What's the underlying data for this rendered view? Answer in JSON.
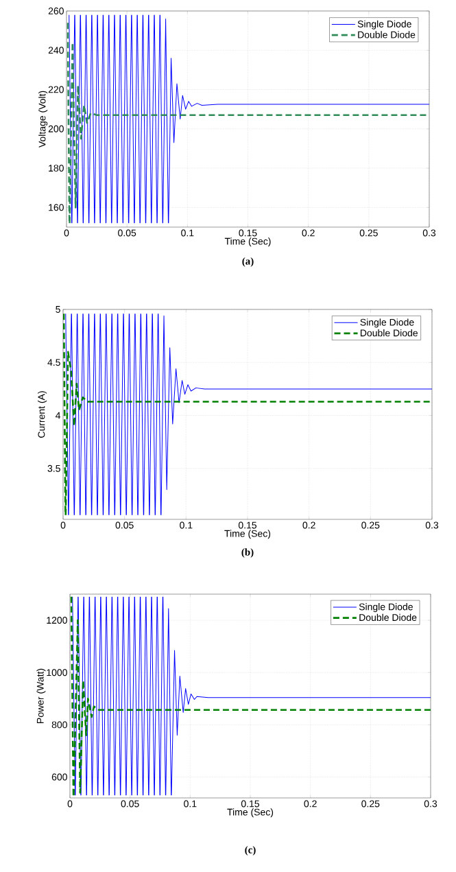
{
  "chart_data": [
    {
      "type": "line",
      "xlabel": "Time (Sec)",
      "ylabel": "Voltage (Volt)",
      "annotations": [
        "(a)"
      ],
      "xlim": [
        0,
        0.3
      ],
      "ylim": [
        150,
        260
      ],
      "xticks": [
        0,
        0.05,
        0.1,
        0.15,
        0.2,
        0.25,
        0.3
      ],
      "yticks": [
        160,
        180,
        200,
        220,
        240,
        260
      ],
      "grid": true,
      "legend": "top right",
      "series": [
        {
          "name": "Single Diode",
          "color": "#0000ff",
          "line_style": "solid",
          "x": [
            0.0019,
            0.002,
            0.0021,
            0.0043,
            0.0044,
            0.0045,
            0.0067,
            0.0068,
            0.0069,
            0.009,
            0.0091,
            0.0092,
            0.0114,
            0.0115,
            0.0116,
            0.0137,
            0.0138,
            0.0139,
            0.0161,
            0.0162,
            0.0163,
            0.0184,
            0.0185,
            0.0186,
            0.0208,
            0.0209,
            0.021,
            0.0231,
            0.0232,
            0.0233,
            0.0255,
            0.0256,
            0.0257,
            0.0278,
            0.0279,
            0.028,
            0.0302,
            0.0303,
            0.0304,
            0.0325,
            0.0326,
            0.0327,
            0.0349,
            0.035,
            0.0351,
            0.0372,
            0.0373,
            0.0374,
            0.0396,
            0.0397,
            0.0398,
            0.0419,
            0.042,
            0.0421,
            0.0443,
            0.0444,
            0.0445,
            0.0466,
            0.0467,
            0.0468,
            0.049,
            0.0491,
            0.0492,
            0.0513,
            0.0514,
            0.0515,
            0.0537,
            0.0538,
            0.0539,
            0.056,
            0.0561,
            0.0562,
            0.0584,
            0.0585,
            0.0586,
            0.0607,
            0.0608,
            0.0609,
            0.0631,
            0.0632,
            0.0633,
            0.0654,
            0.0655,
            0.0656,
            0.0678,
            0.0679,
            0.068,
            0.0701,
            0.0702,
            0.0703,
            0.0725,
            0.0726,
            0.0727,
            0.0748,
            0.0749,
            0.075,
            0.0772,
            0.0773,
            0.0774,
            0.0795,
            0.0796,
            0.0797,
            0.082,
            0.0842,
            0.0843,
            0.0844,
            0.0865,
            0.0888,
            0.0913,
            0.094,
            0.096,
            0.0985,
            0.101,
            0.1035,
            0.108,
            0.112,
            0.125,
            0.3
          ],
          "values": [
            258,
            null,
            258,
            152,
            null,
            152,
            258,
            null,
            258,
            152,
            null,
            152,
            258,
            null,
            258,
            152,
            null,
            152,
            258,
            null,
            258,
            152,
            null,
            152,
            258,
            null,
            258,
            152,
            null,
            152,
            258,
            null,
            258,
            152,
            null,
            152,
            258,
            null,
            258,
            152,
            null,
            152,
            258,
            null,
            258,
            152,
            null,
            152,
            258,
            null,
            258,
            152,
            null,
            152,
            258,
            null,
            258,
            152,
            null,
            152,
            258,
            null,
            258,
            152,
            null,
            152,
            258,
            null,
            258,
            152,
            null,
            152,
            258,
            null,
            258,
            152,
            null,
            152,
            258,
            null,
            258,
            152,
            null,
            152,
            258,
            null,
            258,
            152,
            null,
            152,
            258,
            null,
            258,
            152,
            null,
            152,
            258,
            null,
            258,
            152,
            null,
            152,
            256,
            152,
            null,
            152,
            236,
            193,
            223,
            205,
            217,
            210,
            214,
            211.5,
            213,
            212,
            212.5,
            212.5
          ]
        },
        {
          "name": "Double Diode",
          "color": "#2e8b57",
          "line_style": "dashed",
          "x": [
            0.001,
            0.0024,
            0.0025,
            0.0026,
            0.005,
            0.0075,
            0.0095,
            0.012,
            0.0145,
            0.017,
            0.02,
            0.025,
            0.3
          ],
          "values": [
            254,
            152,
            null,
            152,
            244,
            160,
            222,
            195,
            212,
            203,
            208,
            207,
            207
          ]
        }
      ]
    },
    {
      "type": "line",
      "xlabel": "Time (Sec)",
      "ylabel": "Current (A)",
      "annotations": [
        "(b)"
      ],
      "xlim": [
        0,
        0.3
      ],
      "ylim": [
        3.02,
        5
      ],
      "xticks": [
        0,
        0.05,
        0.1,
        0.15,
        0.2,
        0.25,
        0.3
      ],
      "yticks": [
        3.5,
        4,
        4.5,
        5
      ],
      "grid": true,
      "legend": "top right",
      "series": [
        {
          "name": "Single Diode",
          "color": "#0000ff",
          "line_style": "solid",
          "x": [
            0.0019,
            0.002,
            0.0021,
            0.0043,
            0.0044,
            0.0045,
            0.0067,
            0.0068,
            0.0069,
            0.009,
            0.0091,
            0.0092,
            0.0114,
            0.0115,
            0.0116,
            0.0137,
            0.0138,
            0.0139,
            0.0161,
            0.0162,
            0.0163,
            0.0184,
            0.0185,
            0.0186,
            0.0208,
            0.0209,
            0.021,
            0.0231,
            0.0232,
            0.0233,
            0.0255,
            0.0256,
            0.0257,
            0.0278,
            0.0279,
            0.028,
            0.0302,
            0.0303,
            0.0304,
            0.0325,
            0.0326,
            0.0327,
            0.0349,
            0.035,
            0.0351,
            0.0372,
            0.0373,
            0.0374,
            0.0396,
            0.0397,
            0.0398,
            0.0419,
            0.042,
            0.0421,
            0.0443,
            0.0444,
            0.0445,
            0.0466,
            0.0467,
            0.0468,
            0.049,
            0.0491,
            0.0492,
            0.0513,
            0.0514,
            0.0515,
            0.0537,
            0.0538,
            0.0539,
            0.056,
            0.0561,
            0.0562,
            0.0584,
            0.0585,
            0.0586,
            0.0607,
            0.0608,
            0.0609,
            0.0631,
            0.0632,
            0.0633,
            0.0654,
            0.0655,
            0.0656,
            0.0678,
            0.0679,
            0.068,
            0.0701,
            0.0702,
            0.0703,
            0.0725,
            0.0726,
            0.0727,
            0.0748,
            0.0749,
            0.075,
            0.0772,
            0.0773,
            0.0774,
            0.0795,
            0.0796,
            0.0797,
            0.082,
            0.0843,
            0.0868,
            0.0891,
            0.0918,
            0.0943,
            0.0968,
            0.099,
            0.1015,
            0.104,
            0.108,
            0.115,
            0.3
          ],
          "values": [
            4.96,
            null,
            4.96,
            3.06,
            null,
            3.06,
            4.96,
            null,
            4.96,
            3.06,
            null,
            3.06,
            4.96,
            null,
            4.96,
            3.06,
            null,
            3.06,
            4.96,
            null,
            4.96,
            3.06,
            null,
            3.06,
            4.96,
            null,
            4.96,
            3.06,
            null,
            3.06,
            4.96,
            null,
            4.96,
            3.06,
            null,
            3.06,
            4.96,
            null,
            4.96,
            3.06,
            null,
            3.06,
            4.96,
            null,
            4.96,
            3.06,
            null,
            3.06,
            4.96,
            null,
            4.96,
            3.06,
            null,
            3.06,
            4.96,
            null,
            4.96,
            3.06,
            null,
            3.06,
            4.96,
            null,
            4.96,
            3.06,
            null,
            3.06,
            4.96,
            null,
            4.96,
            3.06,
            null,
            3.06,
            4.96,
            null,
            4.96,
            3.06,
            null,
            3.06,
            4.96,
            null,
            4.96,
            3.06,
            null,
            3.06,
            4.96,
            null,
            4.96,
            3.06,
            null,
            3.06,
            4.96,
            null,
            4.96,
            3.06,
            null,
            3.06,
            4.96,
            null,
            4.96,
            3.06,
            null,
            3.06,
            4.94,
            3.3,
            4.64,
            3.92,
            4.44,
            4.12,
            4.33,
            4.2,
            4.29,
            4.23,
            4.26,
            4.25,
            4.25
          ]
        },
        {
          "name": "Double Diode",
          "color": "#008000",
          "line_style": "dashed",
          "x": [
            0.0004,
            0.0005,
            0.0006,
            0.0019,
            0.002,
            0.0021,
            0.004,
            0.0065,
            0.009,
            0.011,
            0.013,
            0.016,
            0.02,
            0.3
          ],
          "values": [
            4.96,
            null,
            4.96,
            3.06,
            null,
            3.06,
            4.6,
            4.42,
            3.9,
            4.3,
            4.05,
            4.17,
            4.13,
            4.13
          ]
        }
      ]
    },
    {
      "type": "line",
      "xlabel": "Time (Sec)",
      "ylabel": "Power (Watt)",
      "annotations": [
        "(c)"
      ],
      "xlim": [
        0,
        0.3
      ],
      "ylim": [
        520,
        1300
      ],
      "xticks": [
        0,
        0.05,
        0.1,
        0.15,
        0.2,
        0.25,
        0.3
      ],
      "yticks": [
        600,
        800,
        1000,
        1200
      ],
      "grid": true,
      "legend": "top right",
      "series": [
        {
          "name": "Single Diode",
          "color": "#0000ff",
          "line_style": "solid",
          "x": [
            0.0019,
            0.002,
            0.0021,
            0.0043,
            0.0044,
            0.0045,
            0.0067,
            0.0068,
            0.0069,
            0.009,
            0.0091,
            0.0092,
            0.0114,
            0.0115,
            0.0116,
            0.0137,
            0.0138,
            0.0139,
            0.0161,
            0.0162,
            0.0163,
            0.0184,
            0.0185,
            0.0186,
            0.0208,
            0.0209,
            0.021,
            0.0231,
            0.0232,
            0.0233,
            0.0255,
            0.0256,
            0.0257,
            0.0278,
            0.0279,
            0.028,
            0.0302,
            0.0303,
            0.0304,
            0.0325,
            0.0326,
            0.0327,
            0.0349,
            0.035,
            0.0351,
            0.0372,
            0.0373,
            0.0374,
            0.0396,
            0.0397,
            0.0398,
            0.0419,
            0.042,
            0.0421,
            0.0443,
            0.0444,
            0.0445,
            0.0466,
            0.0467,
            0.0468,
            0.049,
            0.0491,
            0.0492,
            0.0513,
            0.0514,
            0.0515,
            0.0537,
            0.0538,
            0.0539,
            0.056,
            0.0561,
            0.0562,
            0.0584,
            0.0585,
            0.0586,
            0.0607,
            0.0608,
            0.0609,
            0.0631,
            0.0632,
            0.0633,
            0.0654,
            0.0655,
            0.0656,
            0.0678,
            0.0679,
            0.068,
            0.0701,
            0.0702,
            0.0703,
            0.0725,
            0.0726,
            0.0727,
            0.0748,
            0.0749,
            0.075,
            0.0772,
            0.0773,
            0.0774,
            0.0795,
            0.0796,
            0.0797,
            0.082,
            0.0842,
            0.0843,
            0.0844,
            0.087,
            0.0892,
            0.0914,
            0.0942,
            0.0962,
            0.0985,
            0.1007,
            0.1035,
            0.1056,
            0.115,
            0.3
          ],
          "values": [
            1290,
            null,
            1290,
            530,
            null,
            530,
            1290,
            null,
            1290,
            530,
            null,
            530,
            1290,
            null,
            1290,
            530,
            null,
            530,
            1290,
            null,
            1290,
            530,
            null,
            530,
            1290,
            null,
            1290,
            530,
            null,
            530,
            1290,
            null,
            1290,
            530,
            null,
            530,
            1290,
            null,
            1290,
            530,
            null,
            530,
            1290,
            null,
            1290,
            530,
            null,
            530,
            1290,
            null,
            1290,
            530,
            null,
            530,
            1290,
            null,
            1290,
            530,
            null,
            530,
            1290,
            null,
            1290,
            530,
            null,
            530,
            1290,
            null,
            1290,
            530,
            null,
            530,
            1290,
            null,
            1290,
            530,
            null,
            530,
            1290,
            null,
            1290,
            530,
            null,
            530,
            1290,
            null,
            1290,
            530,
            null,
            530,
            1290,
            null,
            1290,
            530,
            null,
            530,
            1290,
            null,
            1290,
            530,
            null,
            530,
            1245,
            530,
            null,
            530,
            1085,
            760,
            986,
            847,
            939,
            878,
            918,
            897,
            908,
            904,
            904
          ]
        },
        {
          "name": "Double Diode",
          "color": "#008000",
          "line_style": "dashed",
          "x": [
            0.0009,
            0.001,
            0.0011,
            0.0029,
            0.003,
            0.0031,
            0.0065,
            0.0085,
            0.011,
            0.0135,
            0.015,
            0.018,
            0.02,
            0.024,
            0.3
          ],
          "values": [
            1290,
            null,
            1290,
            530,
            null,
            530,
            1200,
            540,
            970,
            760,
            900,
            830,
            870,
            857,
            857
          ]
        }
      ]
    }
  ]
}
